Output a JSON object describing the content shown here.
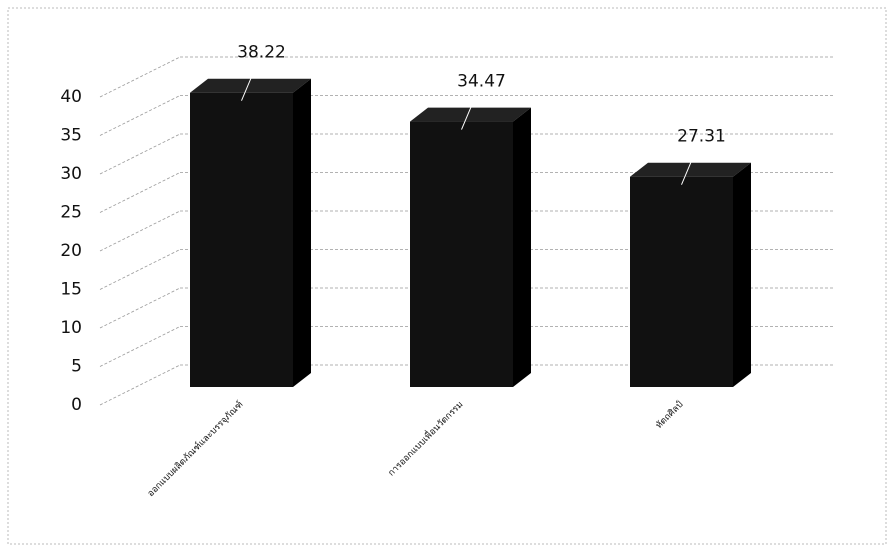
{
  "chart_data": {
    "type": "bar3d",
    "categories": [
      "ออกแบบผลิตภัณฑ์และบรรจุภัณฑ์",
      "การออกแบบเพื่อนวัตกรรม",
      "หัตถศิลป์"
    ],
    "values": [
      38.22,
      34.47,
      27.31
    ],
    "color": "#111111",
    "ylim": [
      0,
      40
    ],
    "yticks": [
      0,
      5,
      10,
      15,
      20,
      25,
      30,
      35,
      40
    ],
    "grid": true
  }
}
